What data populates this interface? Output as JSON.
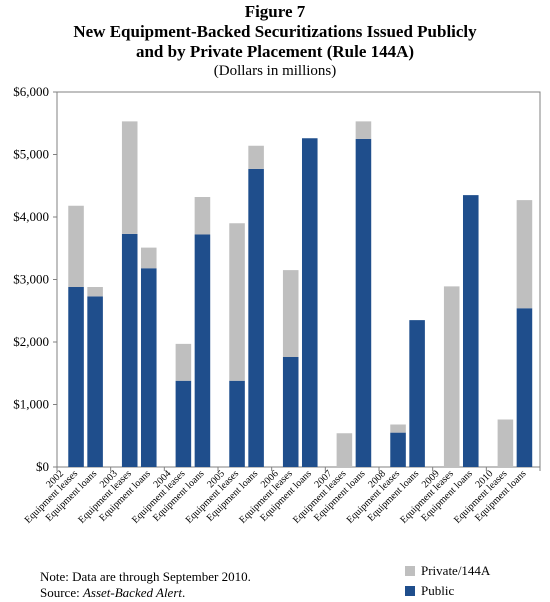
{
  "chart_data": {
    "type": "bar",
    "stacked": true,
    "title": "Figure 7",
    "subtitle": "New Equipment-Backed Securitizations Issued Publicly and by Private Placement (Rule 144A)",
    "subtitle_line1": "New Equipment-Backed Securitizations Issued Publicly",
    "subtitle_line2": "and by Private Placement (Rule 144A)",
    "units": "(Dollars in millions)",
    "ylim": [
      0,
      6000
    ],
    "yticks": [
      "$0",
      "$1,000",
      "$2,000",
      "$3,000",
      "$4,000",
      "$5,000",
      "$6,000"
    ],
    "years": [
      "2002",
      "2003",
      "2004",
      "2005",
      "2006",
      "2007",
      "2008",
      "2009",
      "2010"
    ],
    "categories": [
      "Equipment leases",
      "Equipment loans",
      "Equipment leases",
      "Equipment loans",
      "Equipment leases",
      "Equipment loans",
      "Equipment leases",
      "Equipment loans",
      "Equipment leases",
      "Equipment loans",
      "Equipment leases",
      "Equipment loans",
      "Equipment leases",
      "Equipment loans",
      "Equipment leases",
      "Equipment loans",
      "Equipment leases",
      "Equipment loans"
    ],
    "series": [
      {
        "name": "Public",
        "color": "#1f4e8c",
        "values": [
          2880,
          2730,
          3730,
          3180,
          1380,
          3720,
          1380,
          4770,
          1760,
          5260,
          0,
          5250,
          550,
          2350,
          0,
          4350,
          0,
          2540
        ]
      },
      {
        "name": "Private/144A",
        "color": "#bfbfbf",
        "values": [
          1300,
          150,
          1800,
          330,
          590,
          600,
          2520,
          370,
          1390,
          0,
          540,
          280,
          130,
          0,
          2890,
          0,
          760,
          1730
        ]
      }
    ],
    "grid": false,
    "legend": "bottom-right"
  },
  "note": {
    "line1": "Note:  Data are through September 2010.",
    "source_prefix": "Source:  ",
    "source_title": "Asset-Backed Alert",
    "source_suffix": "."
  }
}
